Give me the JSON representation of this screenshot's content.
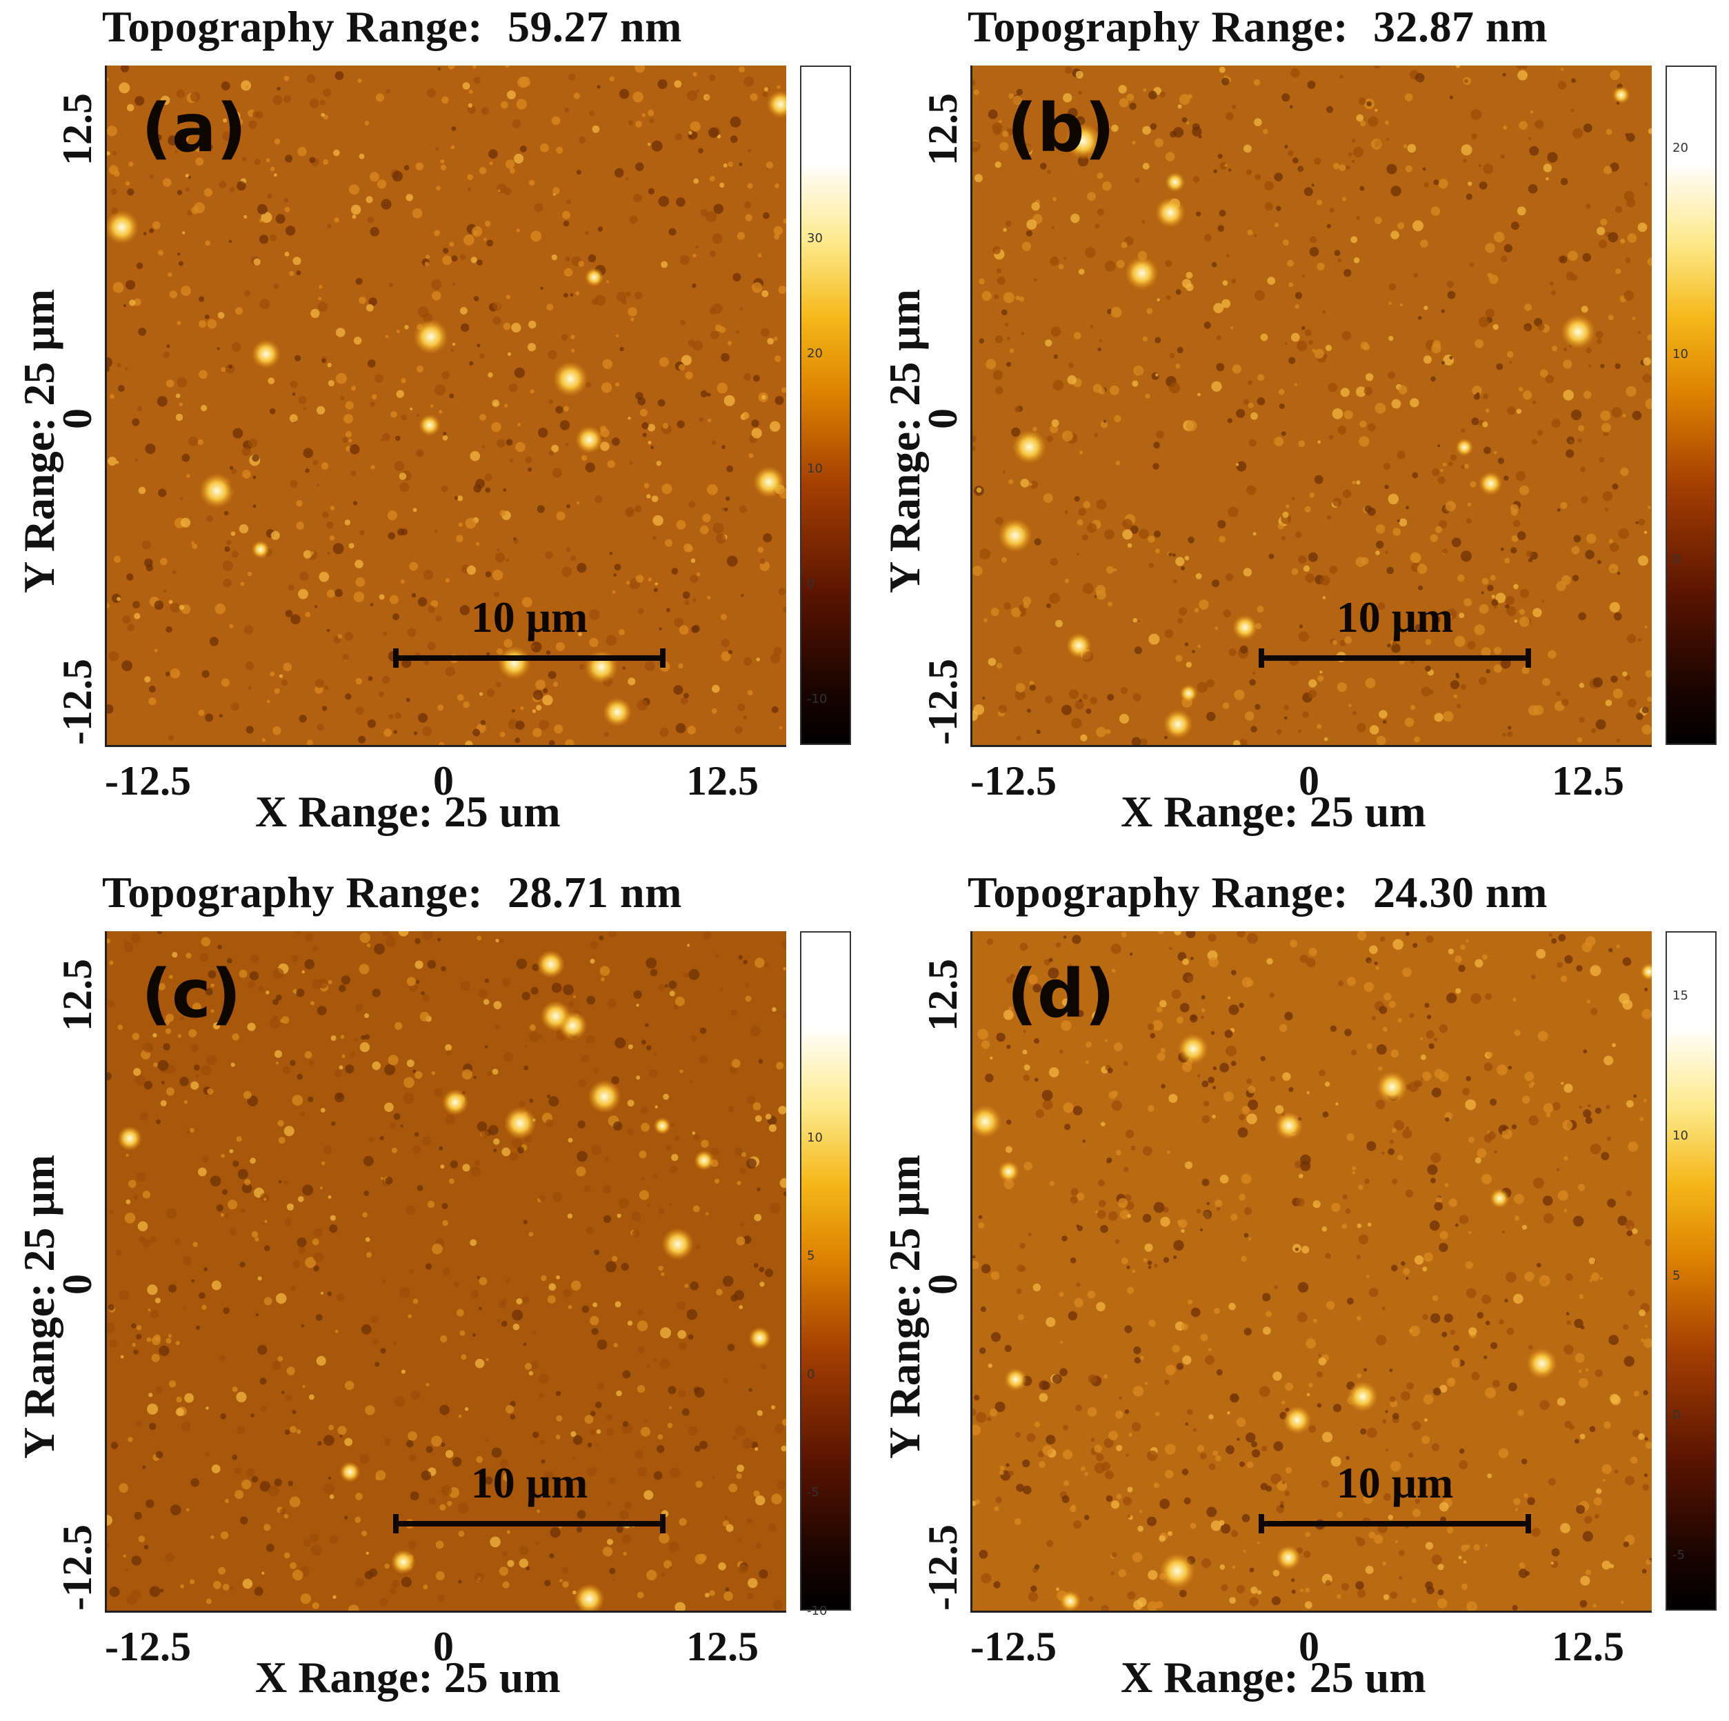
{
  "figure": {
    "panels": [
      {
        "id": "a",
        "letter": "(a)",
        "title_label": "Topography Range:",
        "title_value": "59.27 nm",
        "colorbar_ticks": [
          "30",
          "20",
          "10",
          "0",
          "-10"
        ],
        "colorbar_tick_values": [
          30,
          20,
          10,
          0,
          -10
        ],
        "colorbar_range": [
          -14,
          45
        ],
        "x_ticks": [
          "-12.5",
          "0",
          "12.5"
        ],
        "y_ticks": [
          "12.5",
          "0",
          "-12.5"
        ],
        "x_label": "X Range: 25 um",
        "y_label": "Y Range: 25 μm",
        "scalebar": "10 μm"
      },
      {
        "id": "b",
        "letter": "(b)",
        "title_label": "Topography Range:",
        "title_value": "32.87 nm",
        "colorbar_ticks": [
          "20",
          "10",
          "0"
        ],
        "colorbar_tick_values": [
          20,
          10,
          0
        ],
        "colorbar_range": [
          -9,
          24
        ],
        "x_ticks": [
          "-12.5",
          "0",
          "12.5"
        ],
        "y_ticks": [
          "12.5",
          "0",
          "-12.5"
        ],
        "x_label": "X Range: 25 um",
        "y_label": "Y Range: 25 μm",
        "scalebar": "10 μm"
      },
      {
        "id": "c",
        "letter": "(c)",
        "title_label": "Topography Range:",
        "title_value": "28.71 nm",
        "colorbar_ticks": [
          "10",
          "5",
          "0",
          "-5",
          "-10"
        ],
        "colorbar_tick_values": [
          10,
          5,
          0,
          -5,
          -10
        ],
        "colorbar_range": [
          -10,
          18.7
        ],
        "x_ticks": [
          "-12.5",
          "0",
          "12.5"
        ],
        "y_ticks": [
          "12.5",
          "0",
          "-12.5"
        ],
        "x_label": "X Range: 25 um",
        "y_label": "Y Range: 25 μm",
        "scalebar": "10 μm"
      },
      {
        "id": "d",
        "letter": "(d)",
        "title_label": "Topography Range:",
        "title_value": "24.30 nm",
        "colorbar_ticks": [
          "15",
          "10",
          "5",
          "0",
          "-5"
        ],
        "colorbar_tick_values": [
          15,
          10,
          5,
          0,
          -5
        ],
        "colorbar_range": [
          -7,
          17.3
        ],
        "x_ticks": [
          "-12.5",
          "0",
          "12.5"
        ],
        "y_ticks": [
          "12.5",
          "0",
          "-12.5"
        ],
        "x_label": "X Range: 25 um",
        "y_label": "Y Range: 25 μm",
        "scalebar": "10 μm"
      }
    ]
  }
}
